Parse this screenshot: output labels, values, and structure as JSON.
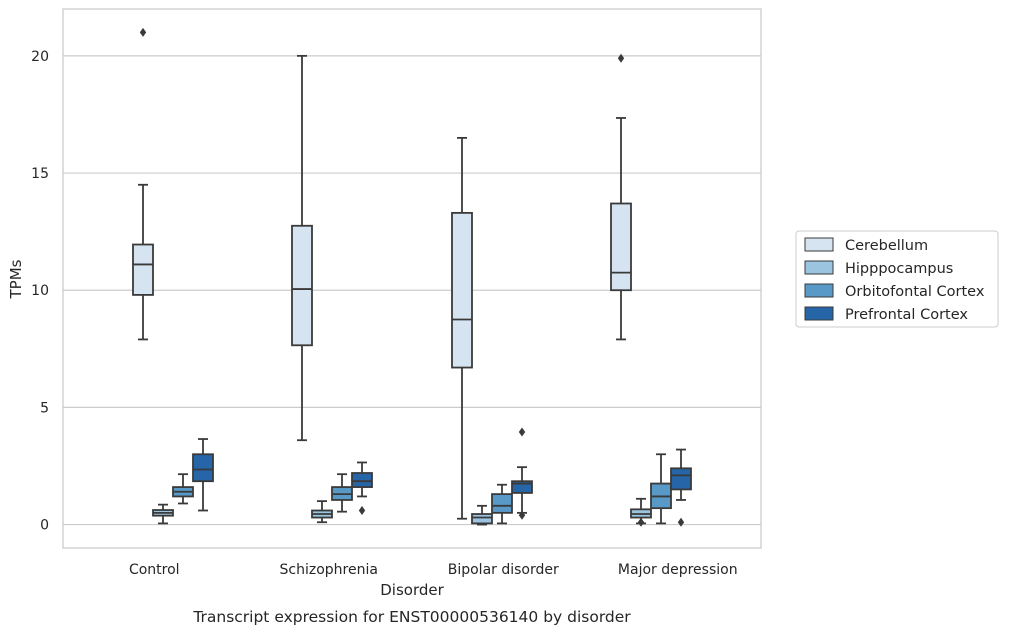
{
  "chart_data": {
    "type": "box",
    "caption": "Transcript expression for ENST00000536140 by disorder",
    "xlabel": "Disorder",
    "ylabel": "TPMs",
    "ylim": [
      -1,
      22
    ],
    "yticks": [
      0,
      5,
      10,
      15,
      20
    ],
    "grid": "horizontal",
    "legend_position": "right",
    "categories": [
      "Control",
      "Schizophrenia",
      "Bipolar disorder",
      "Major depression"
    ],
    "series": [
      {
        "name": "Cerebellum",
        "color": "#d6e4f2",
        "boxes": [
          {
            "whisker_low": 7.9,
            "q1": 9.8,
            "median": 11.1,
            "q3": 11.95,
            "whisker_high": 14.5,
            "outliers": [
              21.0
            ]
          },
          {
            "whisker_low": 3.6,
            "q1": 7.65,
            "median": 10.05,
            "q3": 12.75,
            "whisker_high": 20.0,
            "outliers": []
          },
          {
            "whisker_low": 0.25,
            "q1": 6.7,
            "median": 8.75,
            "q3": 13.3,
            "whisker_high": 16.5,
            "outliers": []
          },
          {
            "whisker_low": 7.9,
            "q1": 10.0,
            "median": 10.75,
            "q3": 13.7,
            "whisker_high": 17.35,
            "outliers": [
              19.9
            ]
          }
        ]
      },
      {
        "name": "Hipppocampus",
        "color": "#9ac4df",
        "boxes": [
          {
            "whisker_low": 0.05,
            "q1": 0.38,
            "median": 0.5,
            "q3": 0.62,
            "whisker_high": 0.85,
            "outliers": []
          },
          {
            "whisker_low": 0.1,
            "q1": 0.3,
            "median": 0.45,
            "q3": 0.6,
            "whisker_high": 1.0,
            "outliers": []
          },
          {
            "whisker_low": 0.0,
            "q1": 0.05,
            "median": 0.3,
            "q3": 0.45,
            "whisker_high": 0.8,
            "outliers": []
          },
          {
            "whisker_low": 0.05,
            "q1": 0.3,
            "median": 0.45,
            "q3": 0.65,
            "whisker_high": 1.1,
            "outliers": [
              0.1
            ]
          }
        ]
      },
      {
        "name": "Orbitofontal Cortex",
        "color": "#5999c8",
        "boxes": [
          {
            "whisker_low": 0.9,
            "q1": 1.2,
            "median": 1.4,
            "q3": 1.6,
            "whisker_high": 2.15,
            "outliers": []
          },
          {
            "whisker_low": 0.55,
            "q1": 1.05,
            "median": 1.3,
            "q3": 1.6,
            "whisker_high": 2.15,
            "outliers": []
          },
          {
            "whisker_low": 0.05,
            "q1": 0.5,
            "median": 0.8,
            "q3": 1.3,
            "whisker_high": 1.7,
            "outliers": []
          },
          {
            "whisker_low": 0.05,
            "q1": 0.7,
            "median": 1.2,
            "q3": 1.75,
            "whisker_high": 3.0,
            "outliers": []
          }
        ]
      },
      {
        "name": "Prefrontal Cortex",
        "color": "#2565a8",
        "boxes": [
          {
            "whisker_low": 0.6,
            "q1": 1.85,
            "median": 2.35,
            "q3": 3.0,
            "whisker_high": 3.65,
            "outliers": []
          },
          {
            "whisker_low": 1.2,
            "q1": 1.6,
            "median": 1.85,
            "q3": 2.2,
            "whisker_high": 2.65,
            "outliers": [
              0.6
            ]
          },
          {
            "whisker_low": 0.5,
            "q1": 1.35,
            "median": 1.75,
            "q3": 1.85,
            "whisker_high": 2.45,
            "outliers": [
              3.95,
              0.4
            ]
          },
          {
            "whisker_low": 1.05,
            "q1": 1.5,
            "median": 2.1,
            "q3": 2.4,
            "whisker_high": 3.2,
            "outliers": [
              0.1
            ]
          }
        ]
      }
    ]
  }
}
